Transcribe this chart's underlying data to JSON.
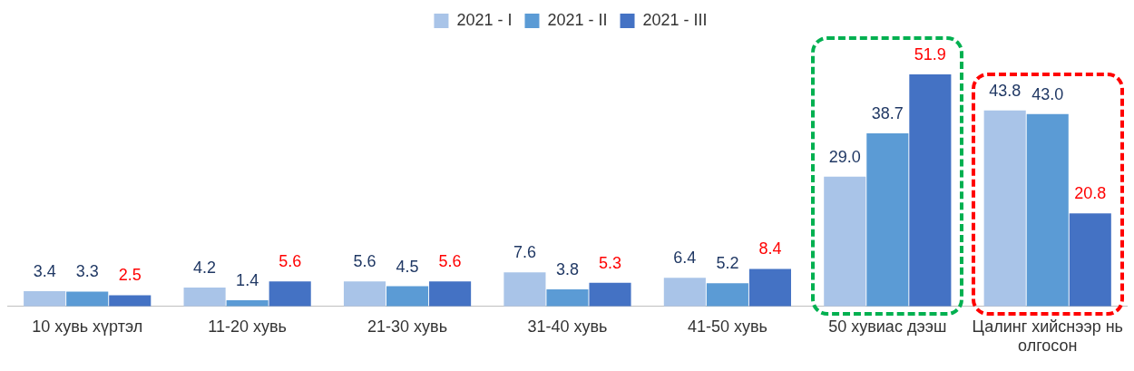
{
  "chart_data": {
    "type": "bar",
    "categories": [
      "10 хувь хүртэл",
      "11-20 хувь",
      "21-30 хувь",
      "31-40 хувь",
      "41-50 хувь",
      "50 хувиас дээш",
      "Цалинг хийснээр нь олгосон"
    ],
    "series": [
      {
        "name": "2021 - I",
        "color": "#a9c4e8",
        "values": [
          3.4,
          4.2,
          5.6,
          7.6,
          6.4,
          29.0,
          43.8
        ],
        "value_labels": [
          "3.4",
          "4.2",
          "5.6",
          "7.6",
          "6.4",
          "29.0",
          "43.8"
        ]
      },
      {
        "name": "2021 - II",
        "color": "#5b9bd5",
        "values": [
          3.3,
          1.4,
          4.5,
          3.8,
          5.2,
          38.7,
          43.0
        ],
        "value_labels": [
          "3.3",
          "1.4",
          "4.5",
          "3.8",
          "5.2",
          "38.7",
          "43.0"
        ]
      },
      {
        "name": "2021 - III",
        "color": "#4472c4",
        "values": [
          2.5,
          5.6,
          5.6,
          5.3,
          8.4,
          51.9,
          20.8
        ],
        "value_labels": [
          "2.5",
          "5.6",
          "5.6",
          "5.3",
          "8.4",
          "51.9",
          "20.8"
        ]
      }
    ],
    "legend": "top",
    "grid": false
  }
}
